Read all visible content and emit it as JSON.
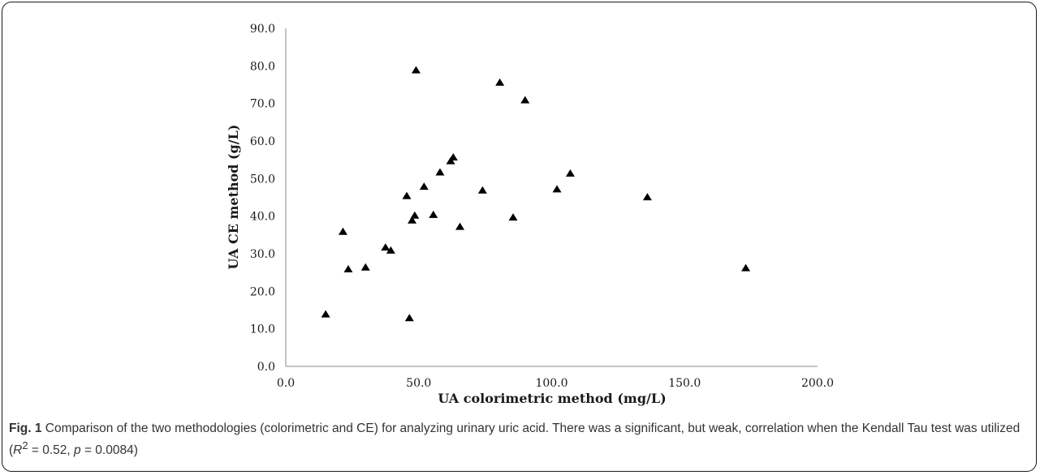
{
  "chart_data": {
    "type": "scatter",
    "title": "",
    "xlabel": "UA colorimetric method (mg/L)",
    "ylabel": "UA CE method  (g/L)",
    "xlim": [
      0,
      200
    ],
    "ylim": [
      0,
      90
    ],
    "x_ticks": [
      "0.0",
      "50.0",
      "100.0",
      "150.0",
      "200.0"
    ],
    "y_ticks": [
      "0.0",
      "10.0",
      "20.0",
      "30.0",
      "40.0",
      "50.0",
      "60.0",
      "70.0",
      "80.0",
      "90.0"
    ],
    "grid": false,
    "marker": "triangle",
    "points": [
      {
        "x": 15.0,
        "y": 14.0
      },
      {
        "x": 21.5,
        "y": 36.0
      },
      {
        "x": 23.5,
        "y": 26.0
      },
      {
        "x": 30.0,
        "y": 26.5
      },
      {
        "x": 37.5,
        "y": 31.8
      },
      {
        "x": 39.5,
        "y": 31.0
      },
      {
        "x": 45.5,
        "y": 45.5
      },
      {
        "x": 46.5,
        "y": 13.0
      },
      {
        "x": 47.5,
        "y": 39.0
      },
      {
        "x": 48.5,
        "y": 40.3
      },
      {
        "x": 49.0,
        "y": 79.0
      },
      {
        "x": 52.0,
        "y": 48.0
      },
      {
        "x": 55.5,
        "y": 40.5
      },
      {
        "x": 58.0,
        "y": 51.8
      },
      {
        "x": 62.0,
        "y": 54.8
      },
      {
        "x": 63.0,
        "y": 55.8
      },
      {
        "x": 65.5,
        "y": 37.3
      },
      {
        "x": 74.0,
        "y": 47.0
      },
      {
        "x": 80.5,
        "y": 75.7
      },
      {
        "x": 85.5,
        "y": 39.8
      },
      {
        "x": 90.0,
        "y": 71.0
      },
      {
        "x": 102.0,
        "y": 47.3
      },
      {
        "x": 107.0,
        "y": 51.5
      },
      {
        "x": 136.0,
        "y": 45.2
      },
      {
        "x": 173.0,
        "y": 26.3
      }
    ]
  },
  "caption": {
    "label": "Fig. 1",
    "text": " Comparison of the two methodologies (colorimetric and CE) for analyzing urinary uric acid. There was a significant, but weak, correlation when the Kendall Tau test was utilized (",
    "r2_symbol": "R",
    "r2_sup": "2",
    "r2_value": " = 0.52, ",
    "p_symbol": "p",
    "p_value": " = 0.0084)"
  }
}
